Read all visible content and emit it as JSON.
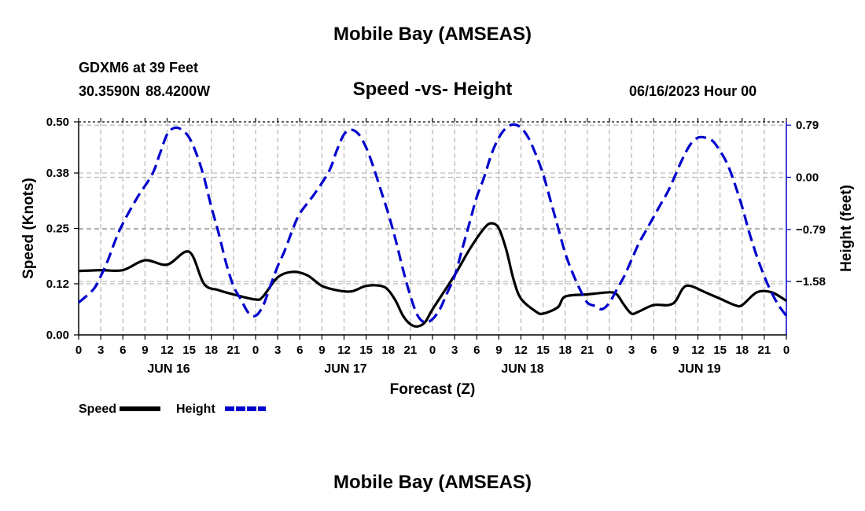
{
  "header": {
    "title": "Mobile Bay (AMSEAS)",
    "station": "GDXM6 at 39 Feet",
    "coordinates": "30.3590N  88.4200W",
    "datetime": "06/16/2023 Hour 00",
    "repeat_title": "Mobile Bay (AMSEAS)"
  },
  "chart_data": {
    "type": "line",
    "title": "Speed -vs- Height",
    "xlabel": "Forecast (Z)",
    "ylabel": "Speed (Knots)",
    "y2label": "Height (feet)",
    "xlim": [
      0,
      96
    ],
    "ylim": [
      0,
      0.5
    ],
    "y2lim": [
      -2.39,
      0.84
    ],
    "yticks": [
      "0.00",
      "0.12",
      "0.25",
      "0.38",
      "0.50"
    ],
    "yticks_values": [
      0.0,
      0.12,
      0.25,
      0.38,
      0.5
    ],
    "y2ticks": [
      "0.79",
      "0.00",
      "−0.79",
      "−1.58"
    ],
    "y2ticks_values": [
      0.79,
      0.0,
      -0.79,
      -1.58
    ],
    "xtick_labels": [
      "0",
      "3",
      "6",
      "9",
      "12",
      "15",
      "18",
      "21",
      "0",
      "3",
      "6",
      "9",
      "12",
      "15",
      "18",
      "21",
      "0",
      "3",
      "6",
      "9",
      "12",
      "15",
      "18",
      "21",
      "0",
      "3",
      "6",
      "9",
      "12",
      "15",
      "18",
      "21",
      "0"
    ],
    "day_labels": [
      {
        "label": "JUN 16",
        "hour": 12
      },
      {
        "label": "JUN 17",
        "hour": 36
      },
      {
        "label": "JUN 18",
        "hour": 60
      },
      {
        "label": "JUN 19",
        "hour": 84
      }
    ],
    "grid": true,
    "legend_position": "bottom-left",
    "series": [
      {
        "name": "Speed",
        "axis": "left",
        "color": "#000000",
        "style": "solid",
        "points": [
          [
            0,
            0.15
          ],
          [
            3,
            0.152
          ],
          [
            6,
            0.152
          ],
          [
            9,
            0.175
          ],
          [
            12,
            0.165
          ],
          [
            15,
            0.195
          ],
          [
            17,
            0.12
          ],
          [
            19,
            0.105
          ],
          [
            21,
            0.095
          ],
          [
            24,
            0.083
          ],
          [
            25,
            0.09
          ],
          [
            27,
            0.135
          ],
          [
            29,
            0.148
          ],
          [
            31,
            0.14
          ],
          [
            33,
            0.115
          ],
          [
            35,
            0.105
          ],
          [
            37,
            0.102
          ],
          [
            39,
            0.115
          ],
          [
            41,
            0.115
          ],
          [
            42,
            0.105
          ],
          [
            43,
            0.08
          ],
          [
            44,
            0.045
          ],
          [
            45,
            0.025
          ],
          [
            46,
            0.02
          ],
          [
            47,
            0.03
          ],
          [
            48,
            0.06
          ],
          [
            51,
            0.14
          ],
          [
            53,
            0.2
          ],
          [
            55,
            0.25
          ],
          [
            56,
            0.262
          ],
          [
            57,
            0.25
          ],
          [
            58,
            0.2
          ],
          [
            59,
            0.13
          ],
          [
            60,
            0.085
          ],
          [
            62,
            0.055
          ],
          [
            63,
            0.05
          ],
          [
            65,
            0.065
          ],
          [
            66,
            0.09
          ],
          [
            69,
            0.095
          ],
          [
            72,
            0.1
          ],
          [
            73,
            0.095
          ],
          [
            74,
            0.07
          ],
          [
            75,
            0.05
          ],
          [
            76,
            0.055
          ],
          [
            78,
            0.07
          ],
          [
            80,
            0.07
          ],
          [
            81,
            0.08
          ],
          [
            82,
            0.11
          ],
          [
            83,
            0.115
          ],
          [
            85,
            0.1
          ],
          [
            87,
            0.085
          ],
          [
            89,
            0.07
          ],
          [
            90,
            0.07
          ],
          [
            92,
            0.1
          ],
          [
            94,
            0.1
          ],
          [
            96,
            0.08
          ]
        ]
      },
      {
        "name": "Height",
        "axis": "right",
        "color": "#0000cc",
        "style": "dashed",
        "points": [
          [
            0,
            -1.9
          ],
          [
            2,
            -1.7
          ],
          [
            3,
            -1.5
          ],
          [
            4,
            -1.25
          ],
          [
            5,
            -0.95
          ],
          [
            6,
            -0.7
          ],
          [
            8,
            -0.3
          ],
          [
            10,
            0.05
          ],
          [
            11,
            0.35
          ],
          [
            12,
            0.65
          ],
          [
            13,
            0.75
          ],
          [
            14,
            0.72
          ],
          [
            15,
            0.6
          ],
          [
            16,
            0.35
          ],
          [
            17,
            0.0
          ],
          [
            18,
            -0.45
          ],
          [
            19,
            -0.85
          ],
          [
            20,
            -1.3
          ],
          [
            21,
            -1.65
          ],
          [
            22,
            -1.85
          ],
          [
            23,
            -2.05
          ],
          [
            24,
            -2.1
          ],
          [
            25,
            -1.95
          ],
          [
            26,
            -1.65
          ],
          [
            27,
            -1.35
          ],
          [
            28,
            -1.1
          ],
          [
            29,
            -0.8
          ],
          [
            30,
            -0.55
          ],
          [
            32,
            -0.25
          ],
          [
            34,
            0.1
          ],
          [
            35,
            0.4
          ],
          [
            36,
            0.65
          ],
          [
            37,
            0.72
          ],
          [
            38,
            0.65
          ],
          [
            39,
            0.45
          ],
          [
            40,
            0.15
          ],
          [
            41,
            -0.2
          ],
          [
            42,
            -0.55
          ],
          [
            43,
            -0.95
          ],
          [
            44,
            -1.4
          ],
          [
            45,
            -1.8
          ],
          [
            46,
            -2.1
          ],
          [
            47,
            -2.2
          ],
          [
            48,
            -2.15
          ],
          [
            49,
            -2.0
          ],
          [
            50,
            -1.75
          ],
          [
            51,
            -1.5
          ],
          [
            52,
            -1.1
          ],
          [
            53,
            -0.7
          ],
          [
            54,
            -0.3
          ],
          [
            55,
            0.0
          ],
          [
            56,
            0.35
          ],
          [
            57,
            0.6
          ],
          [
            58,
            0.75
          ],
          [
            59,
            0.8
          ],
          [
            60,
            0.75
          ],
          [
            61,
            0.6
          ],
          [
            62,
            0.35
          ],
          [
            63,
            0.05
          ],
          [
            64,
            -0.35
          ],
          [
            65,
            -0.75
          ],
          [
            66,
            -1.15
          ],
          [
            67,
            -1.45
          ],
          [
            68,
            -1.7
          ],
          [
            69,
            -1.9
          ],
          [
            70,
            -1.95
          ],
          [
            71,
            -2.0
          ],
          [
            72,
            -1.9
          ],
          [
            73,
            -1.7
          ],
          [
            74,
            -1.5
          ],
          [
            75,
            -1.25
          ],
          [
            76,
            -1.0
          ],
          [
            77,
            -0.8
          ],
          [
            78,
            -0.6
          ],
          [
            79,
            -0.4
          ],
          [
            80,
            -0.2
          ],
          [
            81,
            0.05
          ],
          [
            82,
            0.3
          ],
          [
            83,
            0.5
          ],
          [
            84,
            0.6
          ],
          [
            85,
            0.6
          ],
          [
            86,
            0.55
          ],
          [
            87,
            0.4
          ],
          [
            88,
            0.2
          ],
          [
            89,
            -0.1
          ],
          [
            90,
            -0.45
          ],
          [
            91,
            -0.85
          ],
          [
            92,
            -1.2
          ],
          [
            93,
            -1.5
          ],
          [
            94,
            -1.75
          ],
          [
            95,
            -1.95
          ],
          [
            96,
            -2.1
          ]
        ]
      }
    ]
  }
}
